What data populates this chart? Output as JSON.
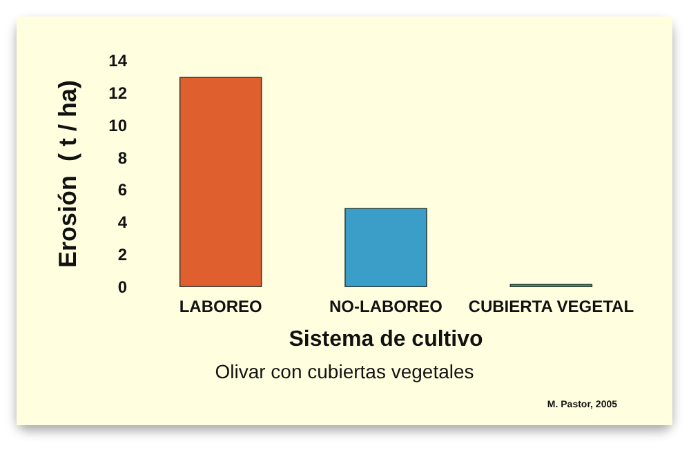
{
  "chart_data": {
    "type": "bar",
    "ylabel": "Erosión  ( t / ha)",
    "xlabel": "Sistema de cultivo",
    "subtitle": "Olivar con cubiertas vegetales",
    "categories": [
      "LABOREO",
      "NO-LABOREO",
      "CUBIERTA VEGETAL"
    ],
    "values": [
      13,
      4.9,
      0.2
    ],
    "colors": [
      "#e05f2e",
      "#3a9ec8",
      "#2ea43a"
    ],
    "ylim": [
      0,
      14
    ],
    "yticks": [
      0,
      2,
      4,
      6,
      8,
      10,
      12,
      14
    ],
    "grid": false,
    "annotations": [
      "M. Pastor, 2005"
    ]
  }
}
